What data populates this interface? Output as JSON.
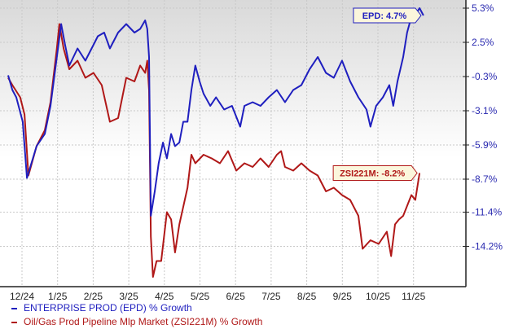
{
  "chart_data": {
    "type": "line",
    "title": "",
    "xlabel": "",
    "ylabel": "% Growth",
    "x_unit": "months since 12/24",
    "x_tick_labels": [
      "12/24",
      "1/25",
      "2/25",
      "3/25",
      "4/25",
      "5/25",
      "6/25",
      "7/25",
      "8/25",
      "9/25",
      "10/25",
      "11/25"
    ],
    "y_tick_labels": [
      "5.3%",
      "2.5%",
      "-0.3%",
      "-3.1%",
      "-5.9%",
      "-8.7%",
      "-11.4%",
      "-14.2%"
    ],
    "y_tick_values": [
      5.3,
      2.5,
      -0.3,
      -3.1,
      -5.9,
      -8.7,
      -11.4,
      -14.2
    ],
    "ylim": [
      -17.5,
      5.9
    ],
    "grid": true,
    "legend_placement": "bottom-left",
    "series": [
      {
        "name": "ENTERPRISE PROD (EPD) % Growth",
        "color": "#1f1fbf",
        "end_label": "EPD: 4.7%",
        "x": [
          -0.39,
          -0.27,
          -0.16,
          0.02,
          0.14,
          0.41,
          0.64,
          0.8,
          0.98,
          1.1,
          1.21,
          1.33,
          1.56,
          1.78,
          2.01,
          2.13,
          2.31,
          2.47,
          2.7,
          2.93,
          3.16,
          3.32,
          3.46,
          3.52,
          3.57,
          3.62,
          3.73,
          3.84,
          3.96,
          4.07,
          4.19,
          4.3,
          4.42,
          4.53,
          4.65,
          4.76,
          4.87,
          4.99,
          5.1,
          5.29,
          5.45,
          5.68,
          5.9,
          6.13,
          6.25,
          6.48,
          6.7,
          6.93,
          7.16,
          7.39,
          7.62,
          7.85,
          8.08,
          8.31,
          8.54,
          8.76,
          8.99,
          9.22,
          9.45,
          9.68,
          9.79,
          9.95,
          10.14,
          10.32,
          10.43,
          10.55,
          10.71,
          10.82,
          10.94,
          11.1,
          11.17,
          11.28
        ],
        "values": [
          -0.2,
          -1.4,
          -2.0,
          -4.0,
          -8.6,
          -6.0,
          -5.0,
          -2.7,
          1.3,
          4.0,
          2.3,
          0.6,
          2.0,
          1.0,
          2.3,
          3.0,
          3.3,
          2.0,
          3.3,
          4.0,
          3.3,
          3.6,
          4.3,
          3.6,
          1.3,
          -11.7,
          -9.7,
          -7.4,
          -5.7,
          -7.0,
          -5.0,
          -6.0,
          -5.7,
          -4.0,
          -4.0,
          -1.4,
          0.6,
          -0.7,
          -1.7,
          -2.7,
          -2.0,
          -3.0,
          -2.7,
          -4.4,
          -2.7,
          -2.4,
          -2.7,
          -2.0,
          -1.4,
          -2.4,
          -1.4,
          -1.0,
          0.3,
          1.3,
          0.0,
          -0.4,
          1.0,
          -0.7,
          -2.0,
          -3.0,
          -4.4,
          -2.7,
          -2.0,
          -1.0,
          -2.7,
          -0.7,
          1.3,
          3.3,
          4.6,
          5.0,
          5.3,
          4.7
        ]
      },
      {
        "name": "Oil/Gas Prod Pipeline Mlp Market (ZSI221M) % Growth",
        "color": "#b01818",
        "end_label": "ZSI221M: -8.2%",
        "x": [
          -0.39,
          -0.27,
          -0.05,
          0.07,
          0.18,
          0.41,
          0.64,
          0.8,
          0.98,
          1.05,
          1.17,
          1.33,
          1.56,
          1.78,
          2.01,
          2.24,
          2.47,
          2.7,
          2.93,
          3.16,
          3.32,
          3.46,
          3.52,
          3.57,
          3.62,
          3.68,
          3.78,
          3.91,
          4.07,
          4.19,
          4.3,
          4.42,
          4.65,
          4.76,
          4.87,
          5.1,
          5.33,
          5.56,
          5.79,
          6.02,
          6.25,
          6.48,
          6.7,
          6.93,
          7.16,
          7.28,
          7.39,
          7.62,
          7.85,
          8.08,
          8.31,
          8.54,
          8.76,
          8.99,
          9.22,
          9.45,
          9.57,
          9.79,
          10.02,
          10.25,
          10.37,
          10.48,
          10.59,
          10.71,
          10.94,
          11.05,
          11.17
        ],
        "values": [
          -0.4,
          -1.0,
          -2.0,
          -3.4,
          -8.4,
          -6.0,
          -4.7,
          -2.4,
          2.0,
          4.0,
          2.0,
          0.3,
          1.0,
          -0.4,
          0.0,
          -1.0,
          -4.0,
          -3.7,
          -0.4,
          -0.7,
          0.6,
          0.0,
          1.0,
          -1.4,
          -13.4,
          -16.7,
          -15.4,
          -15.4,
          -11.4,
          -12.0,
          -14.7,
          -12.4,
          -9.4,
          -6.7,
          -7.4,
          -6.7,
          -7.0,
          -7.4,
          -6.4,
          -8.0,
          -7.4,
          -7.7,
          -7.0,
          -7.7,
          -6.7,
          -6.4,
          -7.7,
          -8.0,
          -7.4,
          -8.0,
          -8.4,
          -9.7,
          -9.4,
          -10.0,
          -10.4,
          -11.7,
          -14.4,
          -13.7,
          -14.0,
          -13.0,
          -15.0,
          -12.4,
          -12.0,
          -11.7,
          -10.0,
          -10.4,
          -8.2
        ]
      }
    ]
  }
}
